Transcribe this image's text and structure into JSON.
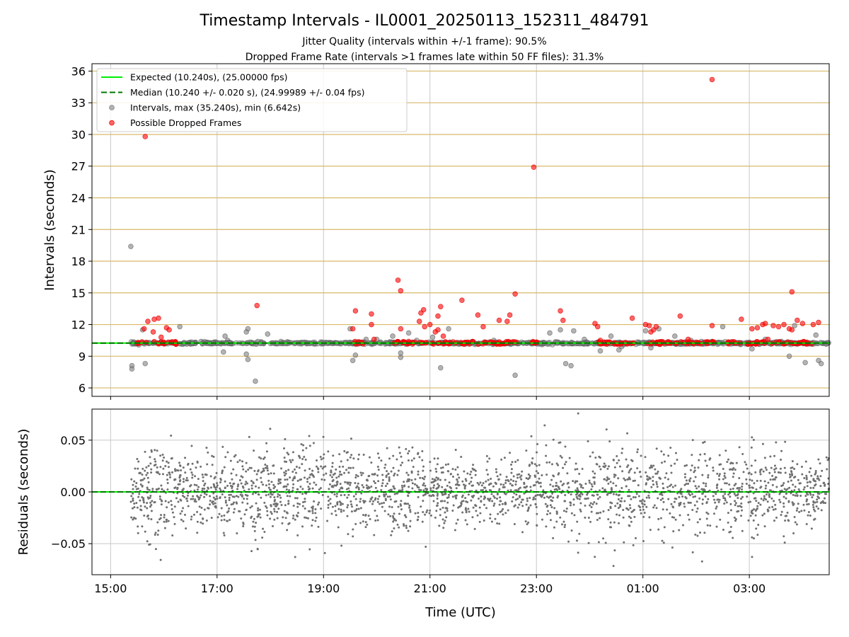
{
  "chart_data": [
    {
      "type": "scatter",
      "title": "Timestamp Intervals - IL0001_20250113_152311_484791",
      "subtitle_lines": [
        "Jitter Quality (intervals within +/-1 frame): 90.5%",
        "Dropped Frame Rate (intervals >1 frames late within 50 FF files): 31.3%"
      ],
      "xlabel": "",
      "ylabel": "Intervals (seconds)",
      "x_unit": "hours since 15:00 UTC",
      "xlim": [
        -0.35,
        13.5
      ],
      "ylim": [
        5.2,
        36.7
      ],
      "yticks": [
        6,
        9,
        12,
        15,
        18,
        21,
        24,
        27,
        30,
        33,
        36
      ],
      "ytick_labels": [
        "6",
        "9",
        "12",
        "15",
        "18",
        "21",
        "24",
        "27",
        "30",
        "33",
        "36"
      ],
      "horizontal_grid_color": "#d9b96a",
      "legend_position": "upper-left",
      "legend": [
        {
          "label": "Expected (10.240s), (25.00000 fps)",
          "style": "solid-line",
          "color": "#00ee00"
        },
        {
          "label": "Median (10.240 +/- 0.020 s), (24.99989 +/- 0.04 fps)",
          "style": "dashed-line",
          "color": "#007700"
        },
        {
          "label": "Intervals, max (35.240s), min (6.642s)",
          "style": "marker",
          "color": "#808080"
        },
        {
          "label": "Possible Dropped Frames",
          "style": "marker",
          "color": "#ff0000"
        }
      ],
      "expected_interval": 10.24,
      "median_interval": 10.24,
      "series": [
        {
          "name": "Intervals, max (35.240s), min (6.642s)",
          "color": "#808080",
          "points": [
            [
              0.38,
              19.4
            ],
            [
              0.4,
              8.1
            ],
            [
              0.4,
              7.8
            ],
            [
              0.42,
              10.2
            ],
            [
              0.6,
              11.5
            ],
            [
              0.65,
              8.3
            ],
            [
              1.3,
              11.8
            ],
            [
              1.7,
              10.4
            ],
            [
              2.15,
              10.9
            ],
            [
              2.2,
              10.5
            ],
            [
              2.12,
              9.4
            ],
            [
              2.55,
              11.3
            ],
            [
              2.58,
              11.6
            ],
            [
              2.55,
              9.2
            ],
            [
              2.58,
              8.7
            ],
            [
              2.72,
              6.64
            ],
            [
              2.95,
              11.1
            ],
            [
              3.2,
              10.4
            ],
            [
              3.65,
              10.3
            ],
            [
              4.5,
              11.6
            ],
            [
              4.55,
              8.6
            ],
            [
              4.6,
              9.1
            ],
            [
              4.8,
              10.6
            ],
            [
              5.0,
              10.6
            ],
            [
              5.3,
              10.9
            ],
            [
              5.45,
              9.3
            ],
            [
              5.45,
              8.9
            ],
            [
              5.6,
              11.2
            ],
            [
              5.75,
              10.5
            ],
            [
              6.05,
              10.8
            ],
            [
              6.2,
              7.9
            ],
            [
              6.35,
              11.6
            ],
            [
              6.8,
              10.4
            ],
            [
              7.2,
              10.5
            ],
            [
              7.6,
              7.2
            ],
            [
              7.9,
              10.2
            ],
            [
              8.25,
              11.2
            ],
            [
              8.45,
              11.5
            ],
            [
              8.55,
              8.3
            ],
            [
              8.65,
              8.1
            ],
            [
              8.7,
              11.4
            ],
            [
              8.9,
              10.6
            ],
            [
              9.2,
              9.5
            ],
            [
              9.4,
              10.9
            ],
            [
              9.55,
              9.6
            ],
            [
              9.6,
              9.9
            ],
            [
              10.05,
              11.4
            ],
            [
              10.15,
              9.8
            ],
            [
              10.3,
              11.6
            ],
            [
              10.6,
              10.9
            ],
            [
              10.9,
              10.5
            ],
            [
              11.1,
              10.4
            ],
            [
              11.3,
              10.4
            ],
            [
              11.5,
              11.8
            ],
            [
              11.7,
              10.2
            ],
            [
              11.95,
              10.3
            ],
            [
              12.05,
              9.7
            ],
            [
              12.3,
              10.6
            ],
            [
              12.5,
              10.3
            ],
            [
              12.6,
              10.4
            ],
            [
              12.75,
              9.0
            ],
            [
              12.85,
              11.9
            ],
            [
              13.05,
              8.4
            ],
            [
              13.25,
              11.0
            ],
            [
              13.3,
              8.6
            ],
            [
              13.35,
              8.3
            ]
          ]
        },
        {
          "name": "Possible Dropped Frames",
          "color": "#ff0000",
          "points": [
            [
              0.65,
              29.8
            ],
            [
              0.63,
              11.6
            ],
            [
              0.7,
              12.3
            ],
            [
              0.8,
              11.3
            ],
            [
              0.82,
              12.5
            ],
            [
              0.9,
              12.6
            ],
            [
              0.95,
              10.8
            ],
            [
              1.05,
              11.7
            ],
            [
              1.1,
              11.5
            ],
            [
              2.75,
              13.8
            ],
            [
              4.55,
              11.6
            ],
            [
              4.6,
              13.3
            ],
            [
              4.9,
              13.0
            ],
            [
              4.9,
              12.0
            ],
            [
              4.95,
              10.6
            ],
            [
              5.4,
              16.2
            ],
            [
              5.45,
              15.2
            ],
            [
              5.45,
              11.6
            ],
            [
              5.6,
              10.4
            ],
            [
              5.8,
              12.3
            ],
            [
              5.83,
              13.1
            ],
            [
              5.88,
              13.4
            ],
            [
              5.9,
              11.8
            ],
            [
              6.0,
              12.0
            ],
            [
              6.1,
              11.3
            ],
            [
              6.15,
              11.5
            ],
            [
              6.15,
              12.8
            ],
            [
              6.2,
              13.7
            ],
            [
              6.25,
              10.9
            ],
            [
              6.6,
              14.3
            ],
            [
              6.9,
              12.9
            ],
            [
              7.0,
              11.8
            ],
            [
              7.3,
              12.4
            ],
            [
              7.45,
              12.3
            ],
            [
              7.5,
              12.9
            ],
            [
              7.6,
              14.9
            ],
            [
              7.95,
              26.9
            ],
            [
              8.45,
              13.3
            ],
            [
              8.5,
              12.4
            ],
            [
              9.1,
              12.1
            ],
            [
              9.15,
              11.8
            ],
            [
              9.2,
              10.5
            ],
            [
              9.8,
              12.6
            ],
            [
              10.05,
              12.0
            ],
            [
              10.12,
              11.9
            ],
            [
              10.15,
              11.3
            ],
            [
              10.2,
              11.5
            ],
            [
              10.25,
              11.8
            ],
            [
              10.7,
              12.8
            ],
            [
              10.85,
              10.6
            ],
            [
              11.3,
              35.2
            ],
            [
              11.3,
              11.9
            ],
            [
              11.85,
              12.5
            ],
            [
              12.05,
              11.6
            ],
            [
              12.15,
              11.7
            ],
            [
              12.25,
              12.0
            ],
            [
              12.3,
              12.1
            ],
            [
              12.35,
              10.6
            ],
            [
              12.45,
              11.9
            ],
            [
              12.55,
              11.8
            ],
            [
              12.65,
              12.0
            ],
            [
              12.75,
              11.6
            ],
            [
              12.8,
              11.5
            ],
            [
              12.8,
              15.1
            ],
            [
              12.9,
              12.4
            ],
            [
              13.0,
              12.1
            ],
            [
              13.2,
              12.0
            ],
            [
              13.3,
              12.2
            ]
          ],
          "dense_bands_at": 10.24,
          "dense_band_ranges": [
            [
              0.5,
              1.25
            ],
            [
              4.55,
              4.75
            ],
            [
              5.3,
              5.65
            ],
            [
              5.55,
              7.4
            ],
            [
              7.15,
              7.65
            ],
            [
              7.9,
              8.1
            ],
            [
              9.05,
              9.85
            ],
            [
              9.95,
              10.65
            ],
            [
              10.7,
              11.25
            ],
            [
              11.3,
              11.45
            ],
            [
              11.6,
              11.85
            ],
            [
              11.9,
              13.2
            ]
          ]
        }
      ]
    },
    {
      "type": "scatter",
      "title": "",
      "xlabel": "Time (UTC)",
      "ylabel": "Residuals (seconds)",
      "x_unit": "hours since 15:00 UTC",
      "xlim": [
        -0.35,
        13.5
      ],
      "ylim": [
        -0.08,
        0.08
      ],
      "yticks": [
        -0.05,
        0.0,
        0.05
      ],
      "ytick_labels": [
        "−0.05",
        "0.00",
        "0.05"
      ],
      "xticks": [
        0,
        2,
        4,
        6,
        8,
        10,
        12
      ],
      "xtick_labels": [
        "15:00",
        "17:00",
        "19:00",
        "21:00",
        "23:00",
        "01:00",
        "03:00"
      ],
      "zero_line_colors": [
        "#00ee00",
        "#007700"
      ],
      "series": [
        {
          "name": "",
          "color": "#707070",
          "x_range": [
            0.38,
            13.5
          ],
          "point_count": 2500,
          "spread_sigma": 0.018,
          "outlier_range": [
            -0.075,
            0.078
          ]
        }
      ]
    }
  ]
}
